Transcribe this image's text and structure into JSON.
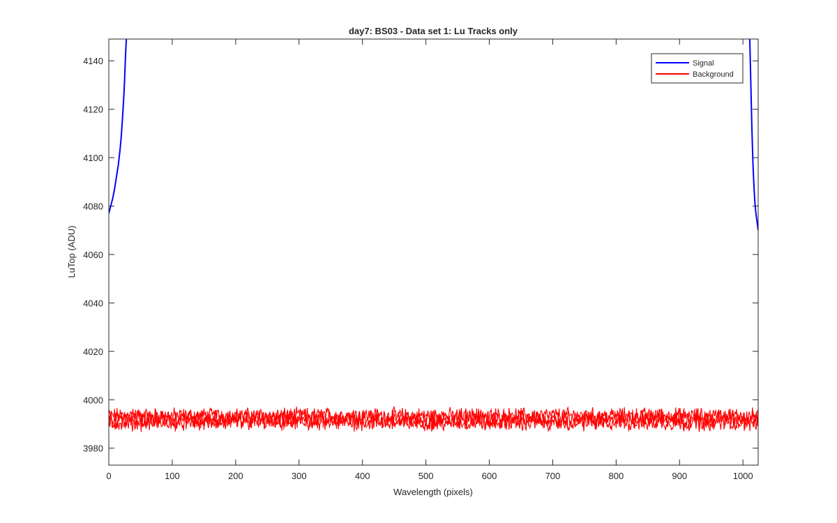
{
  "chart_data": {
    "type": "line",
    "title": "day7: BS03 - Data set 1: Lu Tracks only",
    "xlabel": "Wavelength (pixels)",
    "ylabel": "LuTop (ADU)",
    "xlim": [
      0,
      1024
    ],
    "ylim": [
      3973,
      4149
    ],
    "x_ticks": [
      0,
      100,
      200,
      300,
      400,
      500,
      600,
      700,
      800,
      900,
      1000
    ],
    "y_ticks": [
      3980,
      4000,
      4020,
      4040,
      4060,
      4080,
      4100,
      4120,
      4140
    ],
    "grid": false,
    "legend_position": "top-right",
    "series": [
      {
        "name": "Signal",
        "color": "#0000ff",
        "segments": [
          {
            "x": [
              0,
              3,
              6,
              9,
              12,
              15,
              18,
              20,
              22,
              24,
              25,
              26,
              27,
              28,
              29
            ],
            "y": [
              4077,
              4080,
              4083,
              4087,
              4092,
              4097,
              4104,
              4110,
              4118,
              4127,
              4133,
              4140,
              4146,
              4150,
              4155
            ]
          },
          {
            "x": [
              1010,
              1011,
              1012,
              1013,
              1014,
              1015,
              1016,
              1017,
              1018,
              1019,
              1020,
              1021,
              1022,
              1023,
              1024
            ],
            "y": [
              4155,
              4146,
              4135,
              4124,
              4113,
              4104,
              4096,
              4090,
              4085,
              4081,
              4078,
              4076,
              4074,
              4072,
              4070
            ]
          }
        ]
      },
      {
        "name": "Background",
        "color": "#ff0000",
        "x_range": [
          0,
          1024
        ],
        "bands": [
          {
            "mean": 3993.5,
            "amplitude": 2.6
          },
          {
            "mean": 3990.5,
            "amplitude": 2.8
          },
          {
            "mean": 3992.0,
            "amplitude": 3.2
          }
        ],
        "y_min": 3984,
        "y_max": 3999
      }
    ]
  }
}
